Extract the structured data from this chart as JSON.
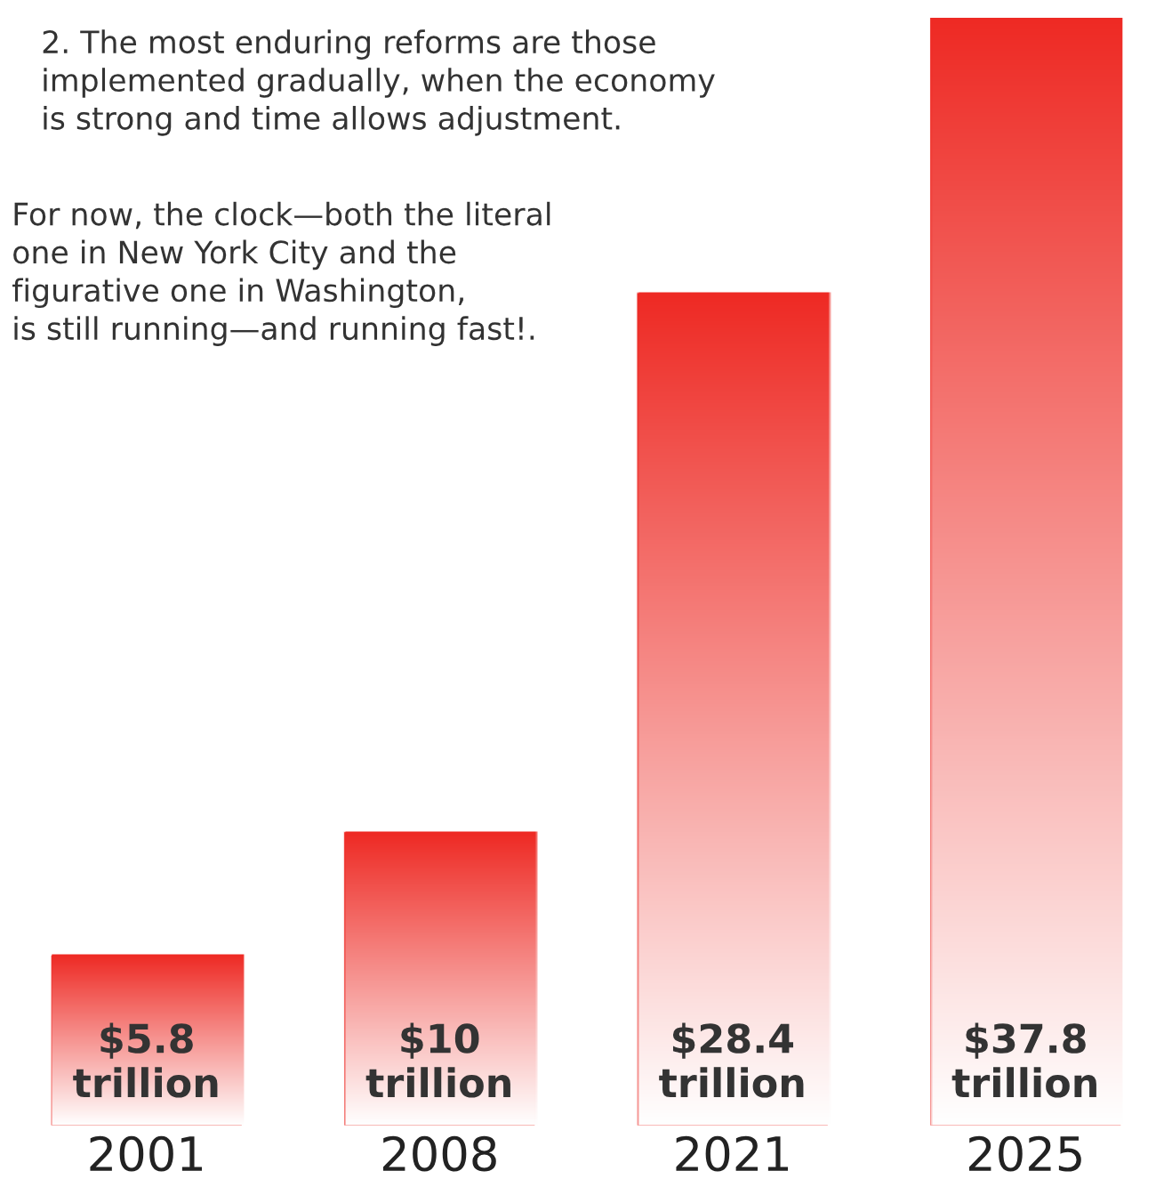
{
  "chart_data": {
    "type": "bar",
    "categories": [
      "2001",
      "2008",
      "2021",
      "2025"
    ],
    "values": [
      5.8,
      10,
      28.4,
      37.8
    ],
    "value_labels": [
      "$5.8\ntrillion",
      "$10\ntrillion",
      "$28.4\ntrillion",
      "$37.8\ntrillion"
    ],
    "color": "#ee2a24",
    "annotations": [
      "2. The most enduring reforms are those\nimplemented gradually, when the economy\nis strong and time allows adjustment.",
      "For now, the clock—both the literal\none in New York City and the\nfigurative one in Washington,\nis still running—and running fast!."
    ]
  }
}
